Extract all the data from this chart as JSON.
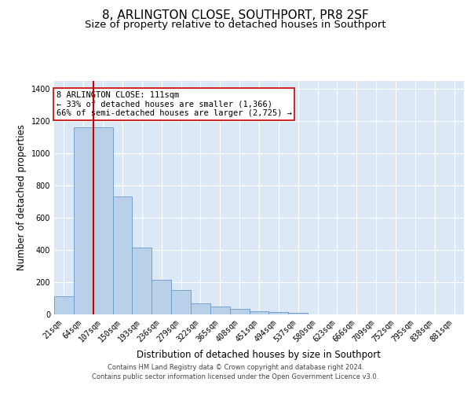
{
  "title": "8, ARLINGTON CLOSE, SOUTHPORT, PR8 2SF",
  "subtitle": "Size of property relative to detached houses in Southport",
  "xlabel": "Distribution of detached houses by size in Southport",
  "ylabel": "Number of detached properties",
  "categories": [
    "21sqm",
    "64sqm",
    "107sqm",
    "150sqm",
    "193sqm",
    "236sqm",
    "279sqm",
    "322sqm",
    "365sqm",
    "408sqm",
    "451sqm",
    "494sqm",
    "537sqm",
    "580sqm",
    "623sqm",
    "666sqm",
    "709sqm",
    "752sqm",
    "795sqm",
    "838sqm",
    "881sqm"
  ],
  "bar_heights": [
    110,
    1160,
    1160,
    730,
    415,
    215,
    150,
    70,
    50,
    32,
    18,
    15,
    12,
    0,
    0,
    0,
    0,
    0,
    0,
    0,
    0
  ],
  "bar_color": "#b8d0e8",
  "bar_edge_color": "#6699cc",
  "property_line_color": "#cc0000",
  "property_line_index": 2.5,
  "annotation_text": "8 ARLINGTON CLOSE: 111sqm\n← 33% of detached houses are smaller (1,366)\n66% of semi-detached houses are larger (2,725) →",
  "annotation_box_color": "#cc0000",
  "ylim": [
    0,
    1450
  ],
  "yticks": [
    0,
    200,
    400,
    600,
    800,
    1000,
    1200,
    1400
  ],
  "background_color": "#dce8f5",
  "footer_line1": "Contains HM Land Registry data © Crown copyright and database right 2024.",
  "footer_line2": "Contains public sector information licensed under the Open Government Licence v3.0.",
  "title_fontsize": 11,
  "subtitle_fontsize": 9.5,
  "xlabel_fontsize": 8.5,
  "ylabel_fontsize": 8.5,
  "tick_fontsize": 7,
  "annotation_fontsize": 7.5,
  "footer_fontsize": 6
}
